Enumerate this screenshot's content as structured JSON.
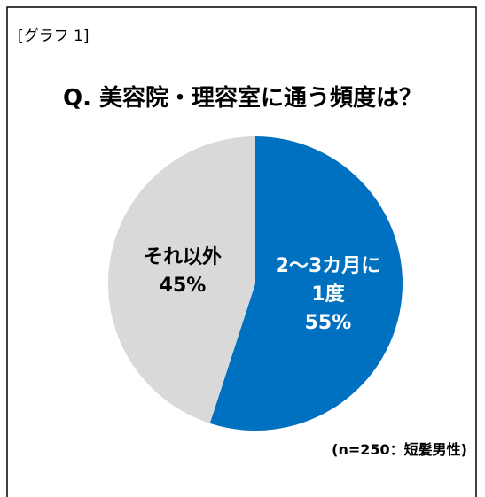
{
  "chart_data": {
    "type": "pie",
    "label": "[グラフ 1]",
    "title": "Q. 美容院・理容室に通う頻度は？",
    "categories": [
      "2〜3カ月に\n1度",
      "それ以外"
    ],
    "values": [
      55,
      45
    ],
    "value_labels": [
      "55%",
      "45%"
    ],
    "colors": [
      "#0070c0",
      "#d9d9d9"
    ],
    "label_colors": [
      "#ffffff",
      "#000000"
    ],
    "annotation": "(n=250：短髪男性)"
  }
}
